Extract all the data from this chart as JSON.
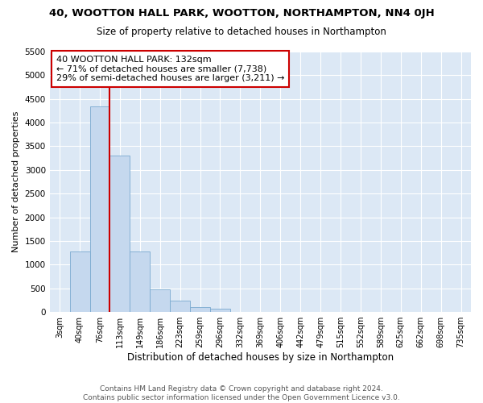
{
  "title": "40, WOOTTON HALL PARK, WOOTTON, NORTHAMPTON, NN4 0JH",
  "subtitle": "Size of property relative to detached houses in Northampton",
  "xlabel": "Distribution of detached houses by size in Northampton",
  "ylabel": "Number of detached properties",
  "bar_color": "#c5d8ee",
  "bar_edge_color": "#7aaad0",
  "annotation_line_color": "#cc0000",
  "annotation_box_edgecolor": "#cc0000",
  "annotation_text_line1": "40 WOOTTON HALL PARK: 132sqm",
  "annotation_text_line2": "← 71% of detached houses are smaller (7,738)",
  "annotation_text_line3": "29% of semi-detached houses are larger (3,211) →",
  "footer": "Contains HM Land Registry data © Crown copyright and database right 2024.\nContains public sector information licensed under the Open Government Licence v3.0.",
  "categories": [
    "3sqm",
    "40sqm",
    "76sqm",
    "113sqm",
    "149sqm",
    "186sqm",
    "223sqm",
    "259sqm",
    "296sqm",
    "332sqm",
    "369sqm",
    "406sqm",
    "442sqm",
    "479sqm",
    "515sqm",
    "552sqm",
    "589sqm",
    "625sqm",
    "662sqm",
    "698sqm",
    "735sqm"
  ],
  "values": [
    0,
    1270,
    4350,
    3300,
    1270,
    480,
    240,
    100,
    75,
    0,
    0,
    0,
    0,
    0,
    0,
    0,
    0,
    0,
    0,
    0,
    0
  ],
  "vline_index": 3.0,
  "ylim": [
    0,
    5500
  ],
  "yticks": [
    0,
    500,
    1000,
    1500,
    2000,
    2500,
    3000,
    3500,
    4000,
    4500,
    5000,
    5500
  ],
  "fig_bg_color": "#ffffff",
  "plot_bg_color": "#dce8f5"
}
